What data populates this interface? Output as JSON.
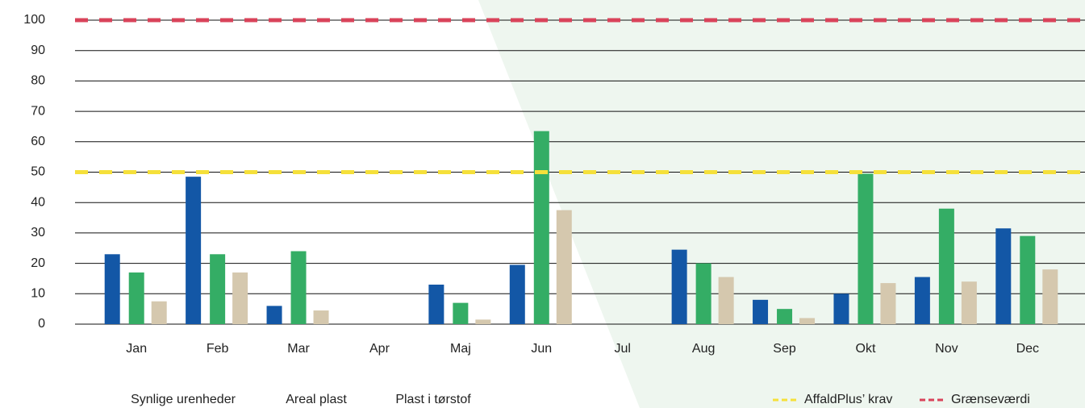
{
  "chart_data": {
    "type": "bar",
    "categories": [
      "Jan",
      "Feb",
      "Mar",
      "Apr",
      "Maj",
      "Jun",
      "Jul",
      "Aug",
      "Sep",
      "Okt",
      "Nov",
      "Dec"
    ],
    "series": [
      {
        "name": "Synlige urenheder",
        "color": "#1357a6",
        "values": [
          23,
          48.5,
          6,
          null,
          13,
          19.5,
          null,
          24.5,
          8,
          10,
          15.5,
          31.5
        ]
      },
      {
        "name": "Areal plast",
        "color": "#34ad65",
        "values": [
          17,
          23,
          24,
          null,
          7,
          63.5,
          null,
          20,
          5,
          49.5,
          38,
          29
        ]
      },
      {
        "name": "Plast i tørstof",
        "color": "#d5c8ae",
        "values": [
          7.5,
          17,
          4.5,
          null,
          1.5,
          37.5,
          null,
          15.5,
          2,
          13.5,
          14,
          18
        ]
      }
    ],
    "reference_lines": [
      {
        "name": "AffaldPlus’ krav",
        "value": 50,
        "color": "#f5e03a"
      },
      {
        "name": "Grænseværdi",
        "value": 100,
        "color": "#d9435a"
      }
    ],
    "ylim": [
      0,
      100
    ],
    "yticks": [
      0,
      10,
      20,
      30,
      40,
      50,
      60,
      70,
      80,
      90,
      100
    ],
    "grid": true
  }
}
